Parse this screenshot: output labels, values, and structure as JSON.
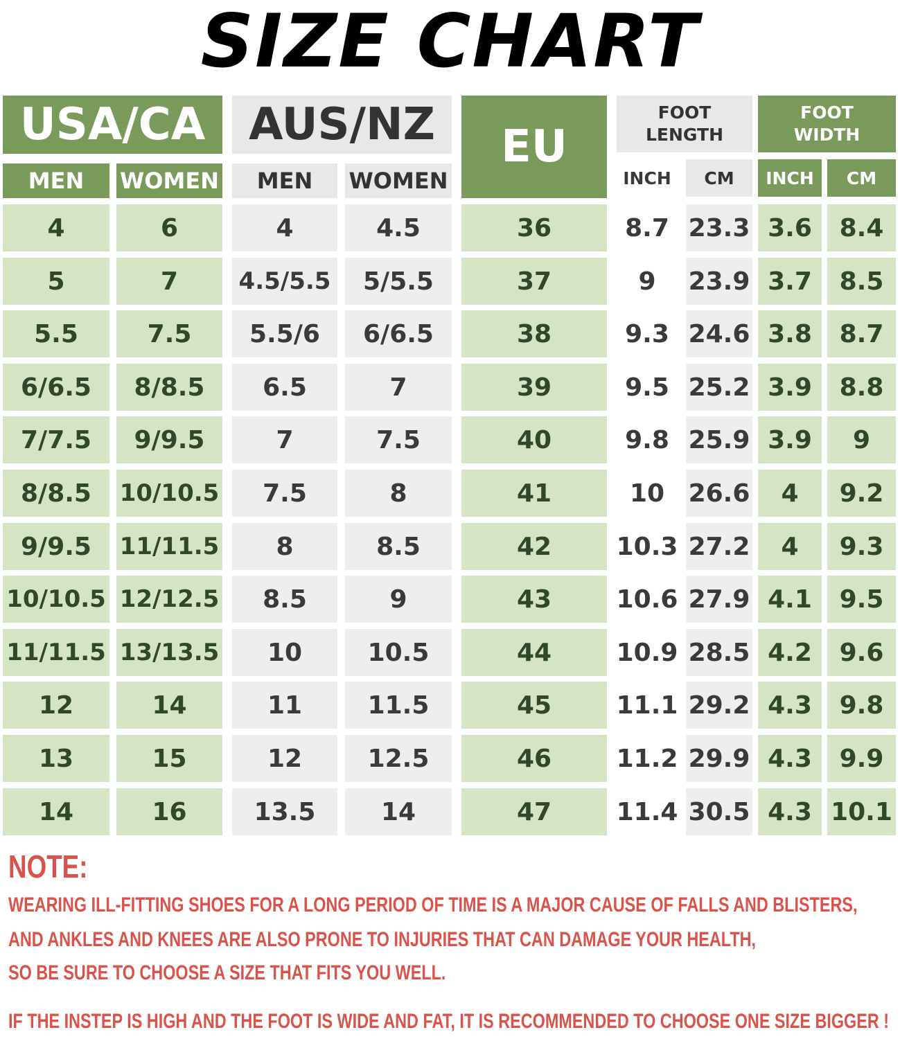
{
  "title": "SIZE CHART",
  "headers": {
    "usa": "USA/CA",
    "aus": "AUS/NZ",
    "eu": "EU",
    "foot_length": "FOOT\nLENGTH",
    "foot_width": "FOOT\nWIDTH",
    "men": "MEN",
    "women": "WOMEN",
    "inch": "INCH",
    "cm": "CM"
  },
  "rows": [
    [
      "4",
      "6",
      "4",
      "4.5",
      "36",
      "8.7",
      "23.3",
      "3.6",
      "8.4"
    ],
    [
      "5",
      "7",
      "4.5/5.5",
      "5/5.5",
      "37",
      "9",
      "23.9",
      "3.7",
      "8.5"
    ],
    [
      "5.5",
      "7.5",
      "5.5/6",
      "6/6.5",
      "38",
      "9.3",
      "24.6",
      "3.8",
      "8.7"
    ],
    [
      "6/6.5",
      "8/8.5",
      "6.5",
      "7",
      "39",
      "9.5",
      "25.2",
      "3.9",
      "8.8"
    ],
    [
      "7/7.5",
      "9/9.5",
      "7",
      "7.5",
      "40",
      "9.8",
      "25.9",
      "3.9",
      "9"
    ],
    [
      "8/8.5",
      "10/10.5",
      "7.5",
      "8",
      "41",
      "10",
      "26.6",
      "4",
      "9.2"
    ],
    [
      "9/9.5",
      "11/11.5",
      "8",
      "8.5",
      "42",
      "10.3",
      "27.2",
      "4",
      "9.3"
    ],
    [
      "10/10.5",
      "12/12.5",
      "8.5",
      "9",
      "43",
      "10.6",
      "27.9",
      "4.1",
      "9.5"
    ],
    [
      "11/11.5",
      "13/13.5",
      "10",
      "10.5",
      "44",
      "10.9",
      "28.5",
      "4.2",
      "9.6"
    ],
    [
      "12",
      "14",
      "11",
      "11.5",
      "45",
      "11.1",
      "29.2",
      "4.3",
      "9.8"
    ],
    [
      "13",
      "15",
      "12",
      "12.5",
      "46",
      "11.2",
      "29.9",
      "4.3",
      "9.9"
    ],
    [
      "14",
      "16",
      "13.5",
      "14",
      "47",
      "11.4",
      "30.5",
      "4.3",
      "10.1"
    ]
  ],
  "note": {
    "title": "NOTE:",
    "lines": [
      "WEARING ILL-FITTING SHOES FOR A LONG PERIOD OF TIME IS A MAJOR CAUSE OF FALLS AND BLISTERS,",
      "AND ANKLES AND KNEES ARE ALSO PRONE TO INJURIES THAT CAN DAMAGE YOUR HEALTH,",
      "SO BE SURE TO CHOOSE A SIZE THAT FITS YOU WELL.",
      "IF THE INSTEP IS HIGH AND THE FOOT IS WIDE AND FAT, IT IS RECOMMENDED TO CHOOSE ONE SIZE BIGGER !"
    ]
  },
  "colors": {
    "header_green": "#7a9a5b",
    "cell_green": "#d6e4c6",
    "header_gray": "#e8e8e8",
    "cell_gray": "#eeeeee",
    "note_red": "#d9534b"
  }
}
